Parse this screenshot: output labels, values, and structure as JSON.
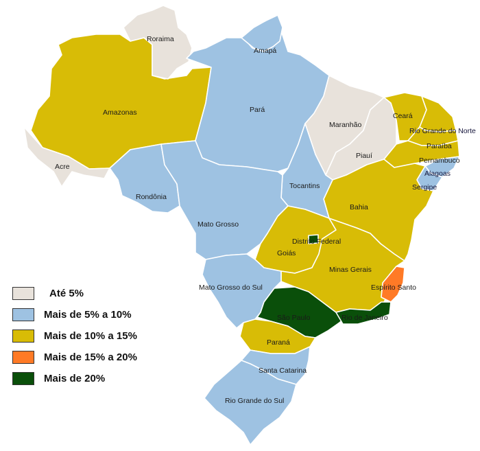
{
  "colors": {
    "ate5": "#e8e2db",
    "de5a10": "#9ec2e2",
    "de10a15": "#d8bc06",
    "de15a20": "#ff7a26",
    "mais20": "#0a4f0a"
  },
  "legend": [
    {
      "label": "Até 5%",
      "color": "#e8e2db"
    },
    {
      "label": "Mais de 5% a 10%",
      "color": "#9ec2e2"
    },
    {
      "label": "Mais de 10% a 15%",
      "color": "#d8bc06"
    },
    {
      "label": "Mais de 15% a 20%",
      "color": "#ff7a26"
    },
    {
      "label": "Mais de 20%",
      "color": "#0a4f0a"
    }
  ],
  "states": {
    "roraima": "Roraima",
    "amapa": "Amapá",
    "amazonas": "Amazonas",
    "para": "Pará",
    "maranhao": "Maranhão",
    "ceara": "Ceará",
    "rio_grande_do_norte": "Rio Grande do Norte",
    "paraiba": "Paraíba",
    "pernambuco": "Pernambuco",
    "alagoas": "Alagoas",
    "sergipe": "Sergipe",
    "piaui": "Piauí",
    "acre": "Acre",
    "rondonia": "Rondônia",
    "tocantins": "Tocantins",
    "bahia": "Bahia",
    "mato_grosso": "Mato Grosso",
    "distrito_federal": "Distrito Federal",
    "goias": "Goiás",
    "minas_gerais": "Minas Gerais",
    "espirito_santo": "Espírito Santo",
    "mato_grosso_do_sul": "Mato Grosso do Sul",
    "sao_paulo": "São Paulo",
    "rio_de_janeiro": "Rio de Janeiro",
    "parana": "Paraná",
    "santa_catarina": "Santa Catarina",
    "rio_grande_do_sul": "Rio Grande do Sul"
  }
}
